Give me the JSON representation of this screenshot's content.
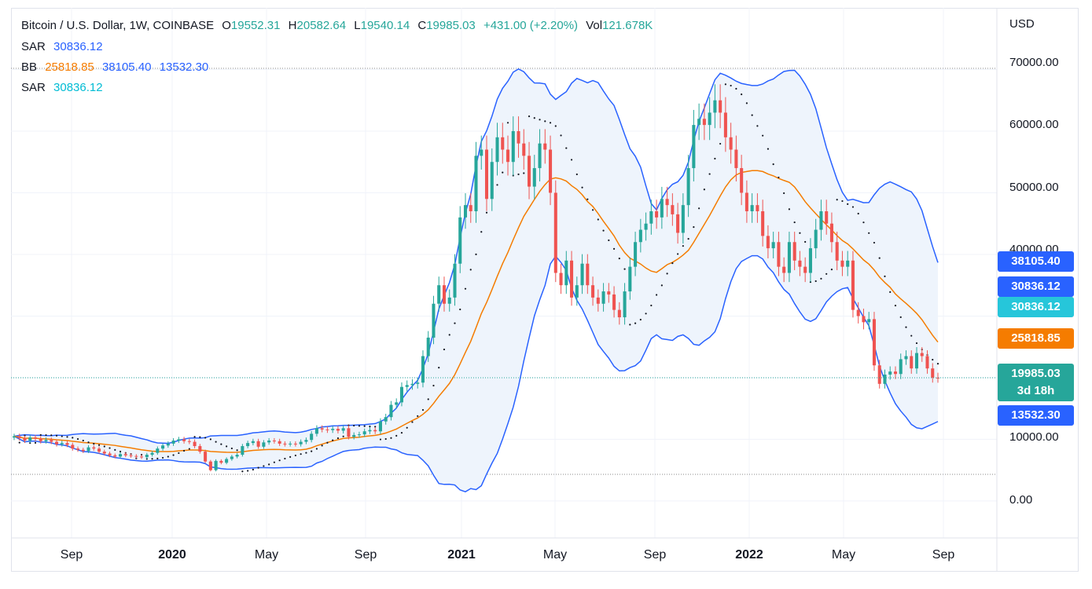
{
  "header": {
    "symbol": "Bitcoin / U.S. Dollar, 1W, COINBASE",
    "o_label": "O",
    "o_value": "19552.31",
    "h_label": "H",
    "h_value": "20582.64",
    "l_label": "L",
    "l_value": "19540.14",
    "c_label": "C",
    "c_value": "19985.03",
    "change": "+431.00 (+2.20%)",
    "vol_label": "Vol",
    "vol_value": "121.678K"
  },
  "indicators": [
    {
      "name": "SAR",
      "values": [
        "30836.12"
      ],
      "colors": [
        "#2962ff"
      ]
    },
    {
      "name": "BB",
      "values": [
        "25818.85",
        "38105.40",
        "13532.30"
      ],
      "colors": [
        "#f57c00",
        "#2962ff",
        "#2962ff"
      ]
    },
    {
      "name": "SAR",
      "values": [
        "30836.12"
      ],
      "colors": [
        "#00bcd4"
      ]
    }
  ],
  "currency": "USD",
  "badges": [
    {
      "text": "38105.40",
      "color": "#2962ff"
    },
    {
      "text": "30836.12",
      "color": "#2962ff"
    },
    {
      "text": "30836.12",
      "color": "#26c6da"
    },
    {
      "text": "25818.85",
      "color": "#f57c00"
    },
    {
      "text": "19985.03",
      "sub": "3d 18h",
      "color": "#26a69a"
    },
    {
      "text": "13532.30",
      "color": "#2962ff"
    }
  ],
  "colors": {
    "up": "#26a69a",
    "down": "#ef5350",
    "band": "#2962ff",
    "basis": "#f57c00",
    "fill": "#eef4fc"
  },
  "chart_data": {
    "type": "candlestick",
    "title": "Bitcoin / U.S. Dollar, 1W, COINBASE",
    "ylim": [
      -6000,
      80000
    ],
    "yticks": [
      "70000.00",
      "60000.00",
      "50000.00",
      "40000.00",
      "10000.00",
      "0.00"
    ],
    "xticks": [
      "Sep",
      "2020",
      "May",
      "Sep",
      "2021",
      "May",
      "Sep",
      "2022",
      "May",
      "Sep"
    ],
    "grid": true,
    "closes": [
      10500,
      10200,
      9800,
      10300,
      10100,
      9700,
      9900,
      9600,
      9200,
      9400,
      9100,
      8500,
      8300,
      8100,
      8700,
      8500,
      8000,
      7700,
      7400,
      7200,
      7600,
      7400,
      7300,
      7200,
      7100,
      7500,
      7800,
      8500,
      9000,
      9300,
      9800,
      10000,
      9700,
      9600,
      8900,
      8000,
      6400,
      5000,
      6500,
      6200,
      6800,
      7200,
      7500,
      8900,
      9400,
      9700,
      8800,
      9500,
      9800,
      9700,
      9300,
      9200,
      9300,
      9200,
      9600,
      9900,
      10900,
      11800,
      11600,
      11500,
      11700,
      11400,
      11800,
      10400,
      10700,
      10800,
      11300,
      11500,
      11300,
      12900,
      13600,
      15600,
      16000,
      18500,
      18800,
      19000,
      19200,
      23500,
      26500,
      32000,
      35000,
      32000,
      33000,
      38500,
      46000,
      48000,
      47000,
      56000,
      57000,
      49000,
      55000,
      59000,
      57000,
      55000,
      60000,
      58000,
      56000,
      51000,
      54000,
      58000,
      57000,
      50000,
      37000,
      35000,
      39000,
      33000,
      35000,
      38500,
      35000,
      33000,
      32000,
      34000,
      33500,
      31000,
      29800,
      34000,
      38000,
      42000,
      44000,
      45000,
      47000,
      46000,
      49000,
      48000,
      46500,
      43500,
      48000,
      54000,
      61000,
      62000,
      61000,
      63000,
      65000,
      63000,
      59000,
      57000,
      54000,
      50000,
      47000,
      48000,
      47000,
      43000,
      41000,
      42000,
      38000,
      37000,
      42000,
      39000,
      38000,
      37000,
      41000,
      44000,
      47000,
      45000,
      42000,
      39000,
      38000,
      39000,
      31000,
      30000,
      29000,
      29500,
      22000,
      19000,
      20500,
      21000,
      20600,
      23000,
      23500,
      21500,
      24000,
      23500,
      21500,
      20000,
      19985
    ],
    "series": [
      {
        "name": "BB",
        "values": [
          "25818.85",
          "38105.40",
          "13532.30"
        ]
      },
      {
        "name": "SAR",
        "values": [
          "30836.12"
        ]
      },
      {
        "name": "SAR",
        "values": [
          "30836.12"
        ]
      }
    ]
  }
}
